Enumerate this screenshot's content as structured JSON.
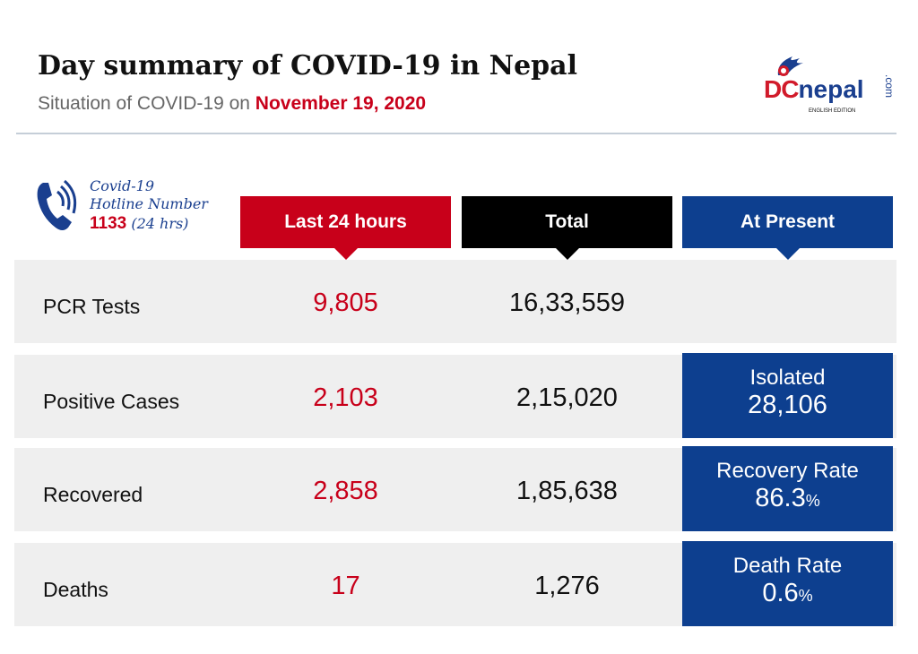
{
  "header": {
    "title": "Day summary of COVID-19 in Nepal",
    "subtitle_prefix": "Situation of COVID-19 on ",
    "date": "November 19, 2020"
  },
  "logo": {
    "text_d": "DC",
    "text_nepal": "nepal",
    "text_com": ".com",
    "edition": "ENGLISH EDITION"
  },
  "hotline": {
    "line1": "Covid-19",
    "line2": "Hotline Number",
    "number": "1133",
    "hours": "(24 hrs)",
    "icon": "phone-icon"
  },
  "columns": [
    {
      "label": "Last 24 hours",
      "color": "#c8001a"
    },
    {
      "label": "Total",
      "color": "#000000"
    },
    {
      "label": "At Present",
      "color": "#0d3f8f"
    }
  ],
  "rows": [
    {
      "label": "PCR Tests",
      "last24": "9,805",
      "total": "16,33,559"
    },
    {
      "label": "Positive Cases",
      "last24": "2,103",
      "total": "2,15,020",
      "present_label": "Isolated",
      "present_value": "28,106",
      "present_unit": ""
    },
    {
      "label": "Recovered",
      "last24": "2,858",
      "total": "1,85,638",
      "present_label": "Recovery Rate",
      "present_value": "86.3",
      "present_unit": "%"
    },
    {
      "label": "Deaths",
      "last24": "17",
      "total": "1,276",
      "present_label": "Death Rate",
      "present_value": "0.6",
      "present_unit": "%"
    }
  ]
}
